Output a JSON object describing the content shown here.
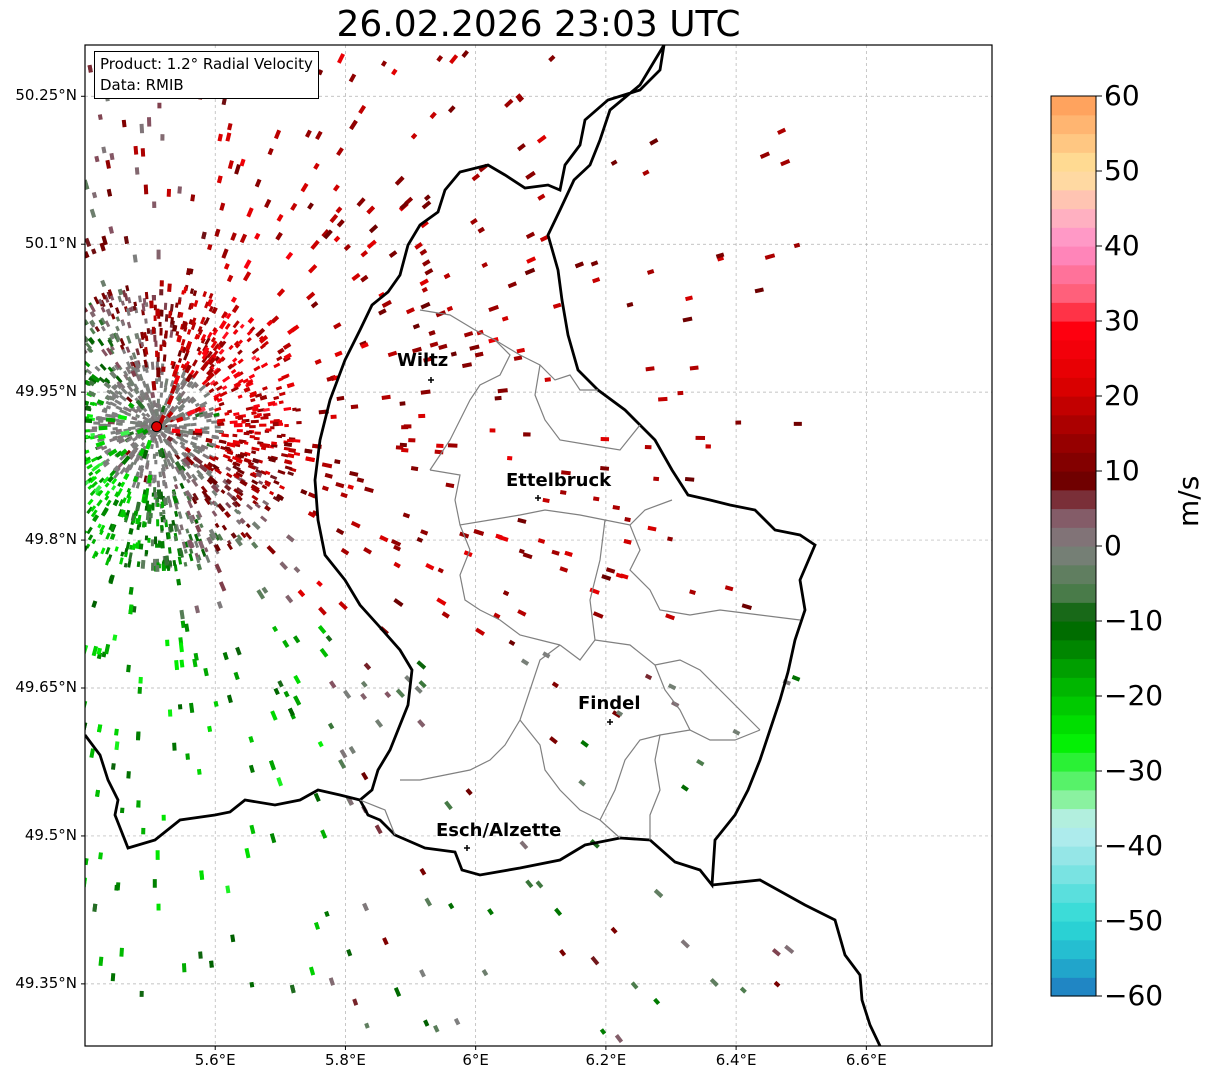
{
  "title": "26.02.2026 23:03 UTC",
  "info": {
    "product": "Product: 1.2° Radial Velocity",
    "data": "Data: RMIB"
  },
  "lat_labels": [
    "50.25°N",
    "50.1°N",
    "49.95°N",
    "49.8°N",
    "49.65°N",
    "49.5°N",
    "49.35°N"
  ],
  "lon_labels": [
    "5.6°E",
    "5.8°E",
    "6°E",
    "6.2°E",
    "6.4°E",
    "6.6°E"
  ],
  "cities": [
    {
      "name": "Wiltz"
    },
    {
      "name": "Ettelbruck"
    },
    {
      "name": "Findel"
    },
    {
      "name": "Esch/Alzette"
    }
  ],
  "colorbar": {
    "unit": "m/s",
    "min": -60,
    "max": 60,
    "ticks": [
      "60",
      "50",
      "40",
      "30",
      "20",
      "10",
      "0",
      "−10",
      "−20",
      "−30",
      "−40",
      "−50",
      "−60"
    ],
    "stops": [
      {
        "v": -60,
        "c": "#1f77c0"
      },
      {
        "v": -55,
        "c": "#22b4cf"
      },
      {
        "v": -50,
        "c": "#2ddad6"
      },
      {
        "v": -42,
        "c": "#8ee5e5"
      },
      {
        "v": -37,
        "c": "#bdeef0"
      },
      {
        "v": -34,
        "c": "#8ff2a6"
      },
      {
        "v": -30,
        "c": "#3df24d"
      },
      {
        "v": -26,
        "c": "#00f000"
      },
      {
        "v": -18,
        "c": "#00b000"
      },
      {
        "v": -10,
        "c": "#006000"
      },
      {
        "v": -6,
        "c": "#4e7d4e"
      },
      {
        "v": 0,
        "c": "#7f7f7f"
      },
      {
        "v": 5,
        "c": "#855060"
      },
      {
        "v": 8,
        "c": "#6a0000"
      },
      {
        "v": 15,
        "c": "#a00000"
      },
      {
        "v": 22,
        "c": "#e00000"
      },
      {
        "v": 29,
        "c": "#ff0010"
      },
      {
        "v": 33,
        "c": "#ff5a72"
      },
      {
        "v": 40,
        "c": "#ff8ec8"
      },
      {
        "v": 44,
        "c": "#ffb2c0"
      },
      {
        "v": 50,
        "c": "#ffe39a"
      },
      {
        "v": 55,
        "c": "#ffbe7a"
      },
      {
        "v": 60,
        "c": "#ff9a55"
      }
    ]
  },
  "radar": {
    "lon": 5.51,
    "lat": 49.915,
    "marker_color": "#e00000"
  }
}
